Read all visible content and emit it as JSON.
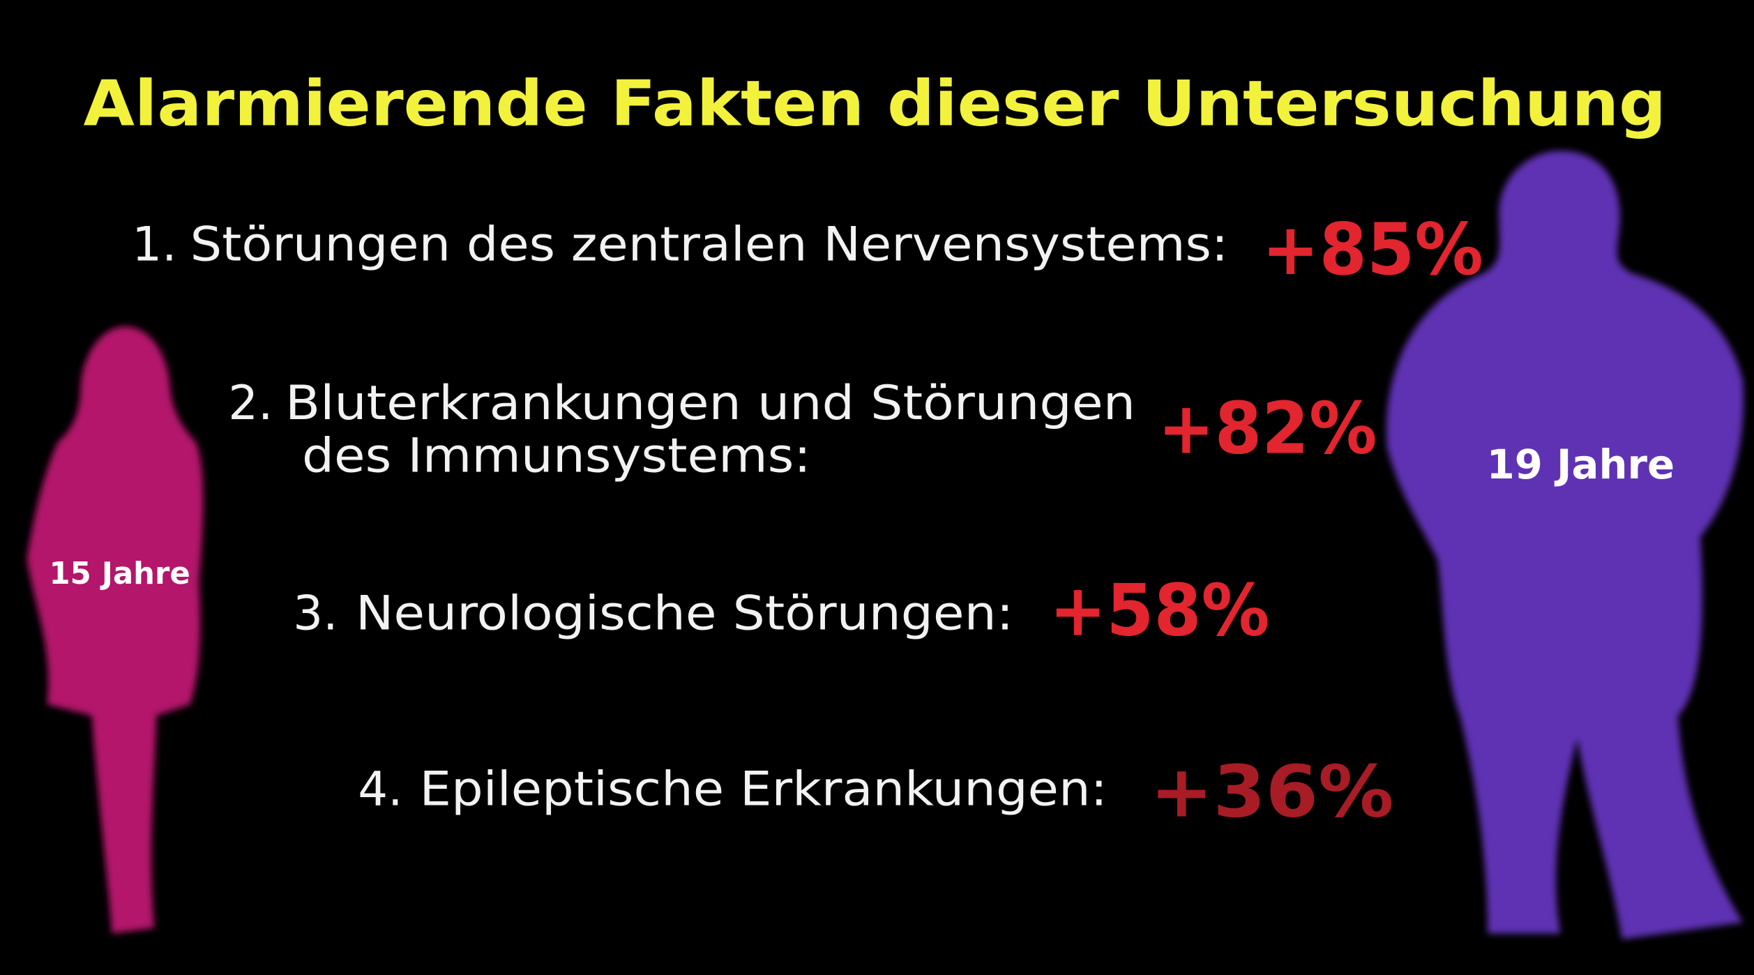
{
  "title": "Alarmierende Fakten dieser Untersuchung",
  "items": [
    {
      "number": "1.",
      "lines": [
        "Störungen des zentralen Nervensystems:"
      ],
      "value": "+85%"
    },
    {
      "number": "2.",
      "lines": [
        "Bluterkrankungen und Störungen",
        "des Immunsystems:"
      ],
      "value": "+82%"
    },
    {
      "number": "3.",
      "lines": [
        "Neurologische Störungen:"
      ],
      "value": "+58%"
    },
    {
      "number": "4.",
      "lines": [
        "Epileptische Erkrankungen:"
      ],
      "value": "+36%"
    }
  ],
  "figures": {
    "left": "15 Jahre",
    "right": "19 Jahre"
  }
}
